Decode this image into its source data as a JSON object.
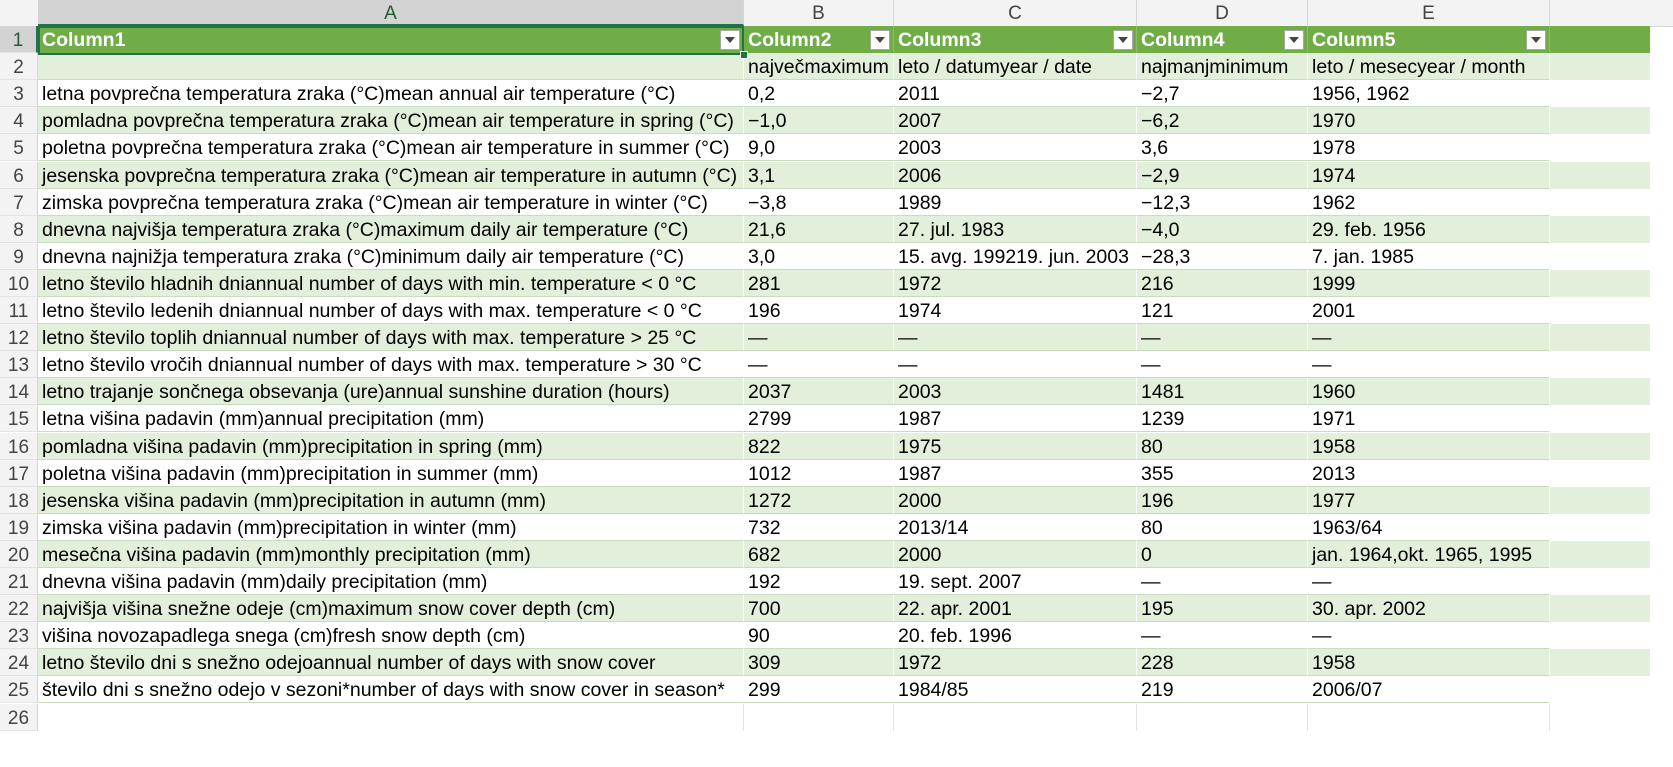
{
  "columns": [
    "A",
    "B",
    "C",
    "D",
    "E"
  ],
  "rows": [
    {
      "n": "1",
      "cells": [
        "Column1",
        "Column2",
        "Column3",
        "Column4",
        "Column5"
      ]
    },
    {
      "n": "2",
      "cells": [
        "",
        "največmaximum",
        "leto / datumyear / date",
        "najmanjminimum",
        "leto / mesecyear / month"
      ]
    },
    {
      "n": "3",
      "cells": [
        "letna povprečna temperatura zraka (°C)mean annual air temperature (°C)",
        "0,2",
        "2011",
        "−2,7",
        "1956, 1962"
      ]
    },
    {
      "n": "4",
      "cells": [
        "pomladna povprečna temperatura zraka (°C)mean air temperature in spring (°C)",
        "−1,0",
        "2007",
        "−6,2",
        "1970"
      ]
    },
    {
      "n": "5",
      "cells": [
        "poletna povprečna temperatura zraka (°C)mean air temperature in summer (°C)",
        "9,0",
        "2003",
        "3,6",
        "1978"
      ]
    },
    {
      "n": "6",
      "cells": [
        "jesenska povprečna temperatura zraka (°C)mean air temperature in autumn (°C)",
        "3,1",
        "2006",
        "−2,9",
        "1974"
      ]
    },
    {
      "n": "7",
      "cells": [
        "zimska povprečna temperatura zraka (°C)mean air temperature in winter (°C)",
        "−3,8",
        "1989",
        "−12,3",
        "1962"
      ]
    },
    {
      "n": "8",
      "cells": [
        "dnevna najvišja temperatura zraka (°C)maximum daily air temperature (°C)",
        "21,6",
        "27. jul. 1983",
        "−4,0",
        "29. feb. 1956"
      ]
    },
    {
      "n": "9",
      "cells": [
        "dnevna najnižja temperatura zraka (°C)minimum daily air temperature (°C)",
        "3,0",
        "15. avg. 199219. jun. 2003",
        "−28,3",
        "7. jan. 1985"
      ]
    },
    {
      "n": "10",
      "cells": [
        "letno število hladnih dniannual number of days with min. temperature < 0 °C",
        "281",
        "1972",
        "216",
        "1999"
      ]
    },
    {
      "n": "11",
      "cells": [
        "letno število ledenih dniannual number of days with max. temperature < 0 °C",
        "196",
        "1974",
        "121",
        "2001"
      ]
    },
    {
      "n": "12",
      "cells": [
        "letno število toplih dniannual number of days with max. temperature > 25 °C",
        "—",
        "—",
        "—",
        "—"
      ]
    },
    {
      "n": "13",
      "cells": [
        "letno število vročih dniannual number of days with max. temperature > 30 °C",
        "—",
        "—",
        "—",
        "—"
      ]
    },
    {
      "n": "14",
      "cells": [
        "letno trajanje sončnega obsevanja (ure)annual sunshine duration (hours)",
        "2037",
        "2003",
        "1481",
        "1960"
      ]
    },
    {
      "n": "15",
      "cells": [
        "letna višina padavin (mm)annual precipitation (mm)",
        "2799",
        "1987",
        "1239",
        "1971"
      ]
    },
    {
      "n": "16",
      "cells": [
        "pomladna višina padavin (mm)precipitation in spring (mm)",
        "822",
        "1975",
        "80",
        "1958"
      ]
    },
    {
      "n": "17",
      "cells": [
        "poletna višina padavin (mm)precipitation in summer (mm)",
        "1012",
        "1987",
        "355",
        "2013"
      ]
    },
    {
      "n": "18",
      "cells": [
        "jesenska višina padavin (mm)precipitation in autumn (mm)",
        "1272",
        "2000",
        "196",
        "1977"
      ]
    },
    {
      "n": "19",
      "cells": [
        "zimska višina padavin (mm)precipitation in winter (mm)",
        "732",
        "2013/14",
        "80",
        "1963/64"
      ]
    },
    {
      "n": "20",
      "cells": [
        "mesečna višina padavin (mm)monthly precipitation (mm)",
        "682",
        "2000",
        "0",
        "jan. 1964,okt. 1965, 1995"
      ]
    },
    {
      "n": "21",
      "cells": [
        "dnevna višina padavin (mm)daily precipitation (mm)",
        "192",
        "19. sept. 2007",
        "—",
        "—"
      ]
    },
    {
      "n": "22",
      "cells": [
        "najvišja višina snežne odeje (cm)maximum snow cover depth (cm)",
        "700",
        "22. apr. 2001",
        "195",
        "30. apr. 2002"
      ]
    },
    {
      "n": "23",
      "cells": [
        "višina novozapadlega snega (cm)fresh snow depth (cm)",
        "90",
        "20. feb. 1996",
        "—",
        "—"
      ]
    },
    {
      "n": "24",
      "cells": [
        "letno število dni s snežno odejoannual number of days with snow cover",
        "309",
        "1972",
        "228",
        "1958"
      ]
    },
    {
      "n": "25",
      "cells": [
        "število dni s snežno odejo v sezoni*number of days with snow cover in season*",
        "299",
        "1984/85",
        "219",
        "2006/07"
      ]
    },
    {
      "n": "26",
      "cells": [
        "",
        "",
        "",
        "",
        ""
      ]
    }
  ],
  "colors": {
    "header_fill": "#70ad47",
    "band_fill": "#e2efda",
    "selection": "#217346"
  }
}
